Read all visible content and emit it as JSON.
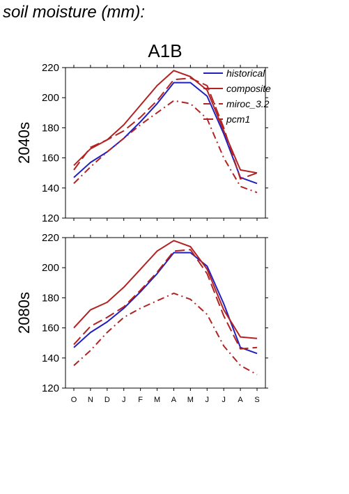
{
  "figure_title": "soil moisture (mm):",
  "scenario_title": "A1B",
  "colors": {
    "historical": "#1f1fbf",
    "model": "#b22222",
    "axis": "#000000"
  },
  "chart_data": [
    {
      "type": "line",
      "panel_label": "2040s",
      "categories": [
        "O",
        "N",
        "D",
        "J",
        "F",
        "M",
        "A",
        "M",
        "J",
        "J",
        "A",
        "S"
      ],
      "ylim": [
        120,
        220
      ],
      "yticks": [
        120,
        140,
        160,
        180,
        200,
        220
      ],
      "legend_position": "top-right",
      "series": [
        {
          "name": "historical",
          "style": "solid",
          "color": "#1f1fbf",
          "values": [
            147,
            157,
            164,
            173,
            184,
            196,
            210,
            210,
            201,
            176,
            147,
            143
          ]
        },
        {
          "name": "composite",
          "style": "solid",
          "color": "#b22222",
          "values": [
            155,
            166,
            172,
            182,
            195,
            208,
            218,
            214,
            205,
            178,
            152,
            150
          ]
        },
        {
          "name": "miroc_3.2",
          "style": "dashdot",
          "color": "#b22222",
          "values": [
            143,
            154,
            164,
            173,
            182,
            190,
            198,
            196,
            186,
            160,
            141,
            137
          ]
        },
        {
          "name": "pcm1",
          "style": "dash",
          "color": "#b22222",
          "values": [
            152,
            167,
            172,
            178,
            187,
            198,
            212,
            213,
            208,
            180,
            146,
            150
          ]
        }
      ]
    },
    {
      "type": "line",
      "panel_label": "2080s",
      "categories": [
        "O",
        "N",
        "D",
        "J",
        "F",
        "M",
        "A",
        "M",
        "J",
        "J",
        "A",
        "S"
      ],
      "ylim": [
        120,
        220
      ],
      "yticks": [
        120,
        140,
        160,
        180,
        200,
        220
      ],
      "series": [
        {
          "name": "historical",
          "style": "solid",
          "color": "#1f1fbf",
          "values": [
            147,
            157,
            164,
            173,
            184,
            196,
            210,
            210,
            201,
            176,
            147,
            143
          ]
        },
        {
          "name": "composite",
          "style": "solid",
          "color": "#b22222",
          "values": [
            160,
            172,
            177,
            187,
            199,
            211,
            218,
            214,
            199,
            172,
            154,
            153
          ]
        },
        {
          "name": "miroc_3.2",
          "style": "dashdot",
          "color": "#b22222",
          "values": [
            135,
            145,
            157,
            167,
            173,
            178,
            183,
            179,
            169,
            148,
            135,
            129
          ]
        },
        {
          "name": "pcm1",
          "style": "dash",
          "color": "#b22222",
          "values": [
            149,
            161,
            167,
            174,
            185,
            197,
            211,
            212,
            196,
            168,
            146,
            147
          ]
        }
      ]
    }
  ]
}
